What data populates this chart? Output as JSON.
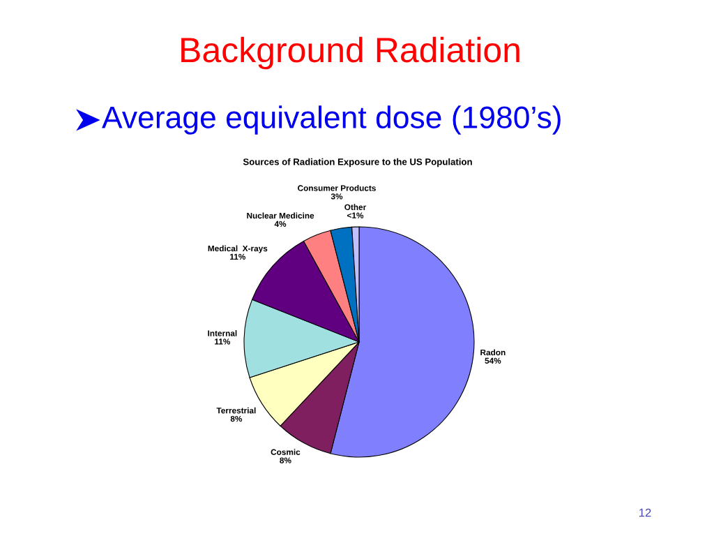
{
  "chart_data": {
    "type": "pie",
    "title": "Background Radiation",
    "subtitle": "Average equivalent dose (1980’s)",
    "annotations": [
      "Sources of Radiation Exposure to the US Population",
      "12"
    ],
    "categories": [
      "Radon",
      "Cosmic",
      "Terrestrial",
      "Internal",
      "Medical  X-rays",
      "Nuclear Medicine",
      "Consumer Products",
      "Other"
    ],
    "values": [
      54,
      8,
      8,
      11,
      11,
      4,
      3,
      1
    ],
    "value_labels": [
      "54%",
      "8%",
      "8%",
      "11%",
      "11%",
      "4%",
      "3%",
      "<1%"
    ],
    "colors": [
      "#8080ff",
      "#7f1f5f",
      "#ffffc0",
      "#a0e0e0",
      "#600080",
      "#ff8080",
      "#0070c0",
      "#c0c0ff"
    ]
  }
}
